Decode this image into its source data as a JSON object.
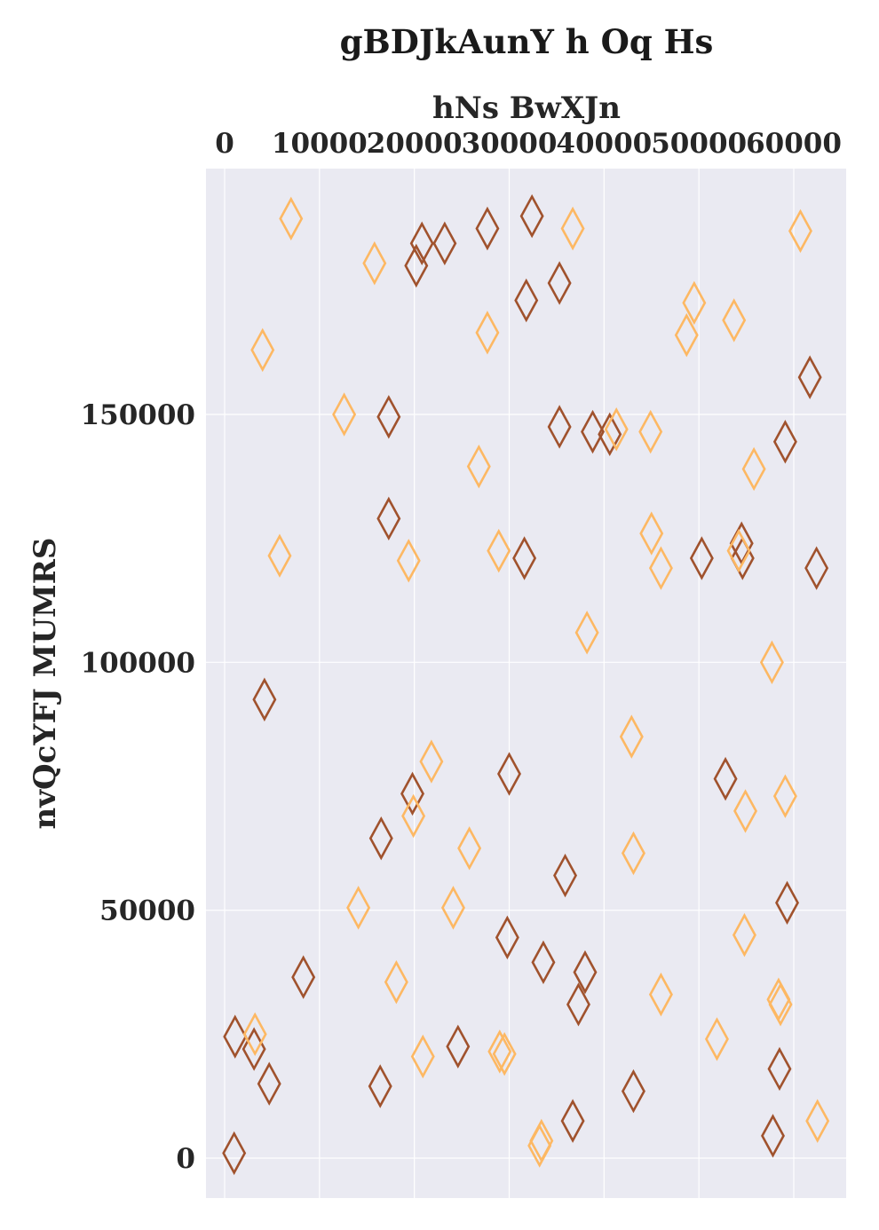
{
  "chart_data": {
    "type": "scatter",
    "title": "gBDJkAunY h Oq Hs",
    "xlabel": "hNs BwXJn",
    "ylabel": "nvQcYFJ MUMRS",
    "x_axis_position": "top",
    "xlim": [
      -2000,
      65500
    ],
    "ylim": [
      -8000,
      200000
    ],
    "xticks": [
      0,
      10000,
      20000,
      30000,
      40000,
      50000,
      60000
    ],
    "xtick_labels": [
      "0",
      "10000",
      "20000",
      "30000",
      "40000",
      "50000",
      "60000"
    ],
    "yticks": [
      0,
      50000,
      100000,
      150000
    ],
    "ytick_labels": [
      "0",
      "50000",
      "100000",
      "150000"
    ],
    "grid": true,
    "marker": "thin-diamond",
    "series": [
      {
        "color": "#a0522d",
        "points": [
          [
            1000,
            1000
          ],
          [
            1100,
            24500
          ],
          [
            3100,
            22000
          ],
          [
            4200,
            92500
          ],
          [
            4700,
            15000
          ],
          [
            8300,
            36500
          ],
          [
            16400,
            14500
          ],
          [
            16500,
            64500
          ],
          [
            17300,
            129000
          ],
          [
            17300,
            149500
          ],
          [
            19800,
            73500
          ],
          [
            20200,
            180000
          ],
          [
            20800,
            184500
          ],
          [
            23200,
            184500
          ],
          [
            24600,
            22500
          ],
          [
            27700,
            187500
          ],
          [
            29800,
            44500
          ],
          [
            30000,
            77500
          ],
          [
            31600,
            121000
          ],
          [
            31800,
            173000
          ],
          [
            32400,
            190000
          ],
          [
            33600,
            39500
          ],
          [
            35300,
            147500
          ],
          [
            35300,
            176500
          ],
          [
            35900,
            57000
          ],
          [
            36700,
            7500
          ],
          [
            37300,
            31000
          ],
          [
            38000,
            37500
          ],
          [
            38800,
            146500
          ],
          [
            40600,
            146000
          ],
          [
            43100,
            13500
          ],
          [
            50300,
            121000
          ],
          [
            52800,
            76500
          ],
          [
            54500,
            124000
          ],
          [
            54600,
            121000
          ],
          [
            57800,
            4500
          ],
          [
            58500,
            18000
          ],
          [
            59100,
            144500
          ],
          [
            59300,
            51500
          ],
          [
            61700,
            157500
          ],
          [
            62400,
            119000
          ]
        ]
      },
      {
        "color": "#fdb863",
        "points": [
          [
            3200,
            25000
          ],
          [
            4000,
            163000
          ],
          [
            5800,
            121500
          ],
          [
            7000,
            189500
          ],
          [
            12600,
            150000
          ],
          [
            14100,
            50500
          ],
          [
            15800,
            180500
          ],
          [
            18100,
            35500
          ],
          [
            19400,
            120500
          ],
          [
            19900,
            69000
          ],
          [
            20900,
            20500
          ],
          [
            21800,
            80000
          ],
          [
            24100,
            50500
          ],
          [
            25800,
            62500
          ],
          [
            26800,
            139500
          ],
          [
            27700,
            166500
          ],
          [
            28900,
            122500
          ],
          [
            29000,
            21500
          ],
          [
            29500,
            21000
          ],
          [
            33200,
            2500
          ],
          [
            33400,
            3500
          ],
          [
            36700,
            187500
          ],
          [
            38200,
            106000
          ],
          [
            41300,
            147000
          ],
          [
            42900,
            85000
          ],
          [
            43100,
            61500
          ],
          [
            44900,
            146500
          ],
          [
            45000,
            126000
          ],
          [
            46000,
            119000
          ],
          [
            46000,
            33000
          ],
          [
            48700,
            166000
          ],
          [
            49500,
            172500
          ],
          [
            51900,
            24000
          ],
          [
            53700,
            169000
          ],
          [
            54200,
            122500
          ],
          [
            54800,
            45000
          ],
          [
            54900,
            70000
          ],
          [
            55800,
            139000
          ],
          [
            57700,
            100000
          ],
          [
            58400,
            32000
          ],
          [
            58600,
            31000
          ],
          [
            59100,
            73000
          ],
          [
            60700,
            187000
          ],
          [
            62500,
            7500
          ]
        ]
      }
    ]
  }
}
